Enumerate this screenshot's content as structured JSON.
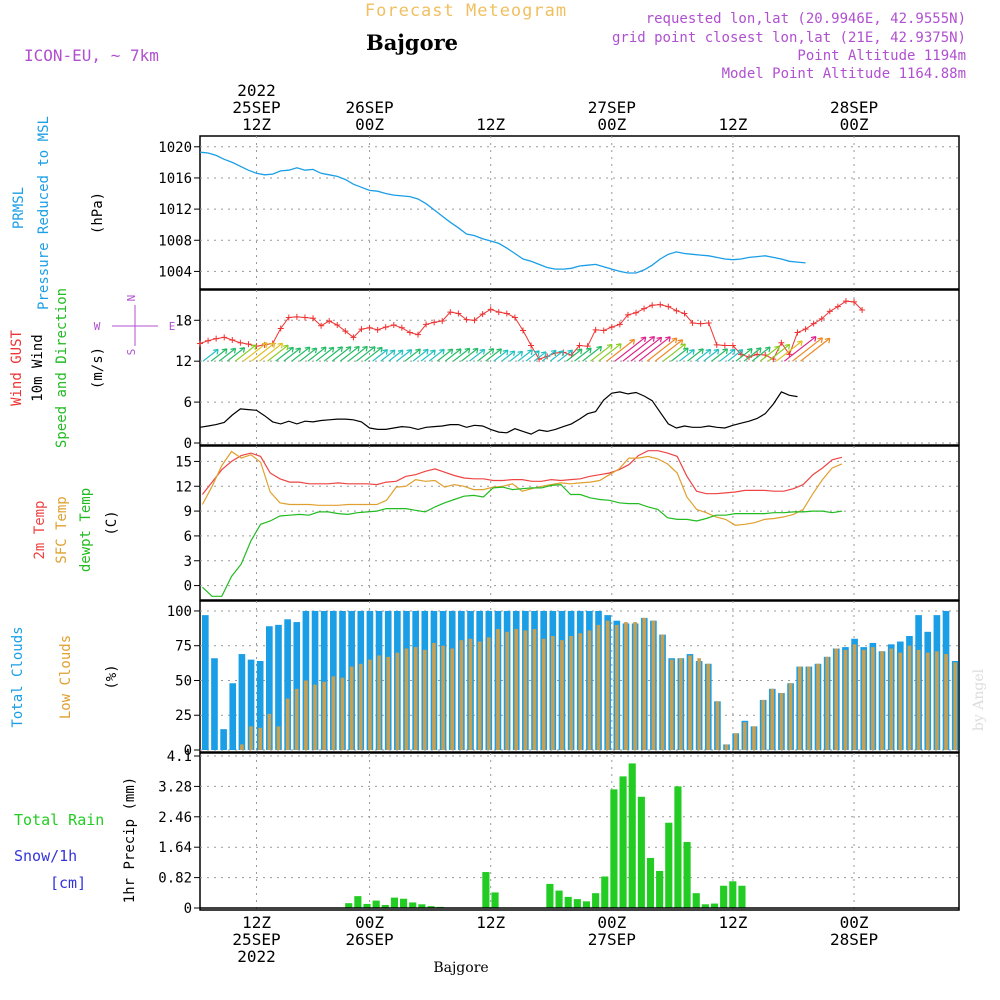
{
  "header": {
    "title": "Forecast Meteogram",
    "location": "Bajgore",
    "model": "ICON-EU, ~ 7km",
    "requested": "requested lon,lat (20.9946E, 42.9555N)",
    "grid_point": "grid point closest lon,lat (21E, 42.9375N)",
    "point_altitude": "Point Altitude 1194m",
    "model_altitude": "Model Point Altitude 1164.88m",
    "footer_location": "Bajgore",
    "watermark": "by Angel",
    "compass": {
      "n": "N",
      "s": "S",
      "e": "E",
      "w": "W"
    }
  },
  "colors": {
    "pressure": "#1a9ee6",
    "gust": "#ee3333",
    "wind_speed": "#000000",
    "direction_label": "#22bb22",
    "temp": "#ee4444",
    "sfc_temp": "#e0a030",
    "dewpt": "#22bb22",
    "total_clouds": "#1a9ee6",
    "low_clouds": "#c8a050",
    "rain": "#22cc22",
    "snow": "#3333dd",
    "header_purple": "#b050d0",
    "title_orange": "#f0c060"
  },
  "chart_data": [
    {
      "type": "line",
      "name": "pressure",
      "xlim": [
        0,
        94
      ],
      "ylim": [
        1002,
        1021
      ],
      "yticks": [
        1004,
        1008,
        1012,
        1016,
        1020
      ],
      "ylabel_lines": [
        "PRMSL",
        "Pressure Reduced to MSL"
      ],
      "unit": "(hPa)",
      "top_time_labels": [
        {
          "x": 7,
          "lines": [
            "2022",
            "25SEP",
            "12Z"
          ]
        },
        {
          "x": 21,
          "lines": [
            "26SEP",
            "00Z"
          ]
        },
        {
          "x": 36,
          "lines": [
            "12Z"
          ]
        },
        {
          "x": 51,
          "lines": [
            "27SEP",
            "00Z"
          ]
        },
        {
          "x": 66,
          "lines": [
            "12Z"
          ]
        },
        {
          "x": 81,
          "lines": [
            "28SEP",
            "00Z"
          ]
        }
      ],
      "series": [
        {
          "values": [
            1019.3,
            1019.2,
            1018.9,
            1018.4,
            1018.0,
            1017.5,
            1017.0,
            1016.6,
            1016.4,
            1016.5,
            1016.9,
            1017.0,
            1017.3,
            1017.0,
            1017.1,
            1016.6,
            1016.4,
            1016.2,
            1015.8,
            1015.2,
            1014.8,
            1014.4,
            1014.3,
            1014.0,
            1013.8,
            1013.7,
            1013.6,
            1013.3,
            1012.7,
            1011.9,
            1011.1,
            1010.3,
            1009.6,
            1008.8,
            1008.6,
            1008.2,
            1007.9,
            1007.6,
            1007.0,
            1006.3,
            1005.6,
            1005.3,
            1004.9,
            1004.5,
            1004.3,
            1004.3,
            1004.4,
            1004.7,
            1004.8,
            1004.9,
            1004.6,
            1004.3,
            1004.0,
            1003.8,
            1003.8,
            1004.2,
            1004.8,
            1005.6,
            1006.2,
            1006.5,
            1006.3,
            1006.2,
            1006.1,
            1006.0,
            1005.8,
            1005.6,
            1005.5,
            1005.6,
            1005.8,
            1005.9,
            1006.0,
            1005.8,
            1005.6,
            1005.3,
            1005.2,
            1005.1
          ]
        }
      ]
    },
    {
      "type": "line",
      "name": "wind",
      "xlim": [
        0,
        94
      ],
      "ylim": [
        0,
        22
      ],
      "yticks": [
        0,
        6,
        12,
        18
      ],
      "label_lines": [
        {
          "text": "Wind GUST",
          "color": "#ee3333"
        },
        {
          "text": "10m Wind",
          "color": "#000000"
        },
        {
          "text": "Speed and Direction",
          "color": "#22bb22"
        }
      ],
      "unit": "(m/s)",
      "series": [
        {
          "name": "Wind GUST",
          "values": [
            14.6,
            15.0,
            15.3,
            15.5,
            15.1,
            14.7,
            14.5,
            14.2,
            14.4,
            14.6,
            16.8,
            18.4,
            18.5,
            18.4,
            18.3,
            17.2,
            17.9,
            17.3,
            16.4,
            15.5,
            16.7,
            16.9,
            16.6,
            17.0,
            17.3,
            16.9,
            16.2,
            15.9,
            17.4,
            17.7,
            17.9,
            19.2,
            19.0,
            18.1,
            18.0,
            18.9,
            19.6,
            19.2,
            19.0,
            18.4,
            16.5,
            14.3,
            12.3,
            12.7,
            13.2,
            13.3,
            12.9,
            14.3,
            14.2,
            16.6,
            16.5,
            17.0,
            17.4,
            18.8,
            19.1,
            19.7,
            20.2,
            20.3,
            20.0,
            19.4,
            19.0,
            17.6,
            17.5,
            17.6,
            14.4,
            14.3,
            14.3,
            13.0,
            12.6,
            13.0,
            12.9,
            12.3,
            14.7,
            13.0,
            16.2,
            16.7,
            17.5,
            18.2,
            19.3,
            20.0,
            20.8,
            20.7,
            19.5
          ]
        },
        {
          "name": "10m Wind",
          "values": [
            2.3,
            2.5,
            2.7,
            3.0,
            4.1,
            5.0,
            4.9,
            4.8,
            4.0,
            3.1,
            2.8,
            3.2,
            2.8,
            3.2,
            3.1,
            3.3,
            3.4,
            3.5,
            3.5,
            3.4,
            3.1,
            2.2,
            2.0,
            2.0,
            2.2,
            2.4,
            2.3,
            2.0,
            2.3,
            2.4,
            2.5,
            2.7,
            2.7,
            2.3,
            2.6,
            2.5,
            2.0,
            1.6,
            1.5,
            2.1,
            1.7,
            1.3,
            1.9,
            1.7,
            2.0,
            2.4,
            2.8,
            3.5,
            4.3,
            4.6,
            6.3,
            7.3,
            7.5,
            7.2,
            7.4,
            6.9,
            6.2,
            4.5,
            2.8,
            2.2,
            2.5,
            2.3,
            2.3,
            2.5,
            2.3,
            2.2,
            2.6,
            2.9,
            3.2,
            3.6,
            4.3,
            5.7,
            7.5,
            7.0,
            6.8
          ]
        }
      ],
      "arrow_direction_deg": 230
    },
    {
      "type": "line",
      "name": "temperature",
      "xlim": [
        0,
        94
      ],
      "ylim": [
        -1.5,
        16.5
      ],
      "yticks": [
        0,
        3,
        6,
        9,
        12,
        15
      ],
      "label_lines": [
        {
          "text": "2m Temp",
          "color": "#ee4444"
        },
        {
          "text": "SFC Temp",
          "color": "#e0a030"
        },
        {
          "text": "dewpt Temp",
          "color": "#22bb22"
        }
      ],
      "unit": "(C)",
      "series": [
        {
          "name": "2m Temp",
          "values": [
            11.0,
            12.5,
            14.0,
            15.0,
            15.7,
            16.0,
            15.6,
            13.6,
            12.9,
            12.5,
            12.5,
            12.3,
            12.3,
            12.3,
            12.4,
            12.3,
            12.3,
            12.3,
            12.2,
            12.5,
            12.6,
            13.2,
            13.4,
            13.8,
            14.1,
            13.7,
            13.3,
            13.0,
            12.9,
            12.9,
            12.7,
            12.7,
            12.8,
            12.8,
            12.6,
            12.6,
            12.8,
            12.7,
            12.8,
            12.9,
            13.2,
            13.4,
            13.6,
            14.0,
            14.6,
            15.7,
            16.3,
            16.3,
            16.0,
            15.6,
            13.2,
            11.4,
            11.1,
            11.1,
            11.2,
            11.3,
            11.5,
            11.5,
            11.5,
            11.4,
            11.4,
            11.7,
            12.2,
            13.4,
            14.2,
            15.2,
            15.5
          ]
        },
        {
          "name": "SFC Temp",
          "values": [
            9.8,
            12.0,
            14.5,
            16.2,
            15.4,
            15.8,
            14.9,
            11.3,
            10.0,
            9.8,
            9.8,
            9.8,
            9.7,
            9.7,
            9.7,
            9.8,
            9.8,
            9.8,
            9.8,
            10.3,
            11.9,
            12.0,
            12.8,
            12.6,
            12.7,
            11.9,
            12.2,
            12.0,
            11.6,
            11.6,
            11.9,
            12.0,
            12.3,
            11.4,
            11.7,
            12.0,
            12.2,
            12.4,
            12.3,
            12.4,
            12.5,
            12.7,
            13.4,
            14.1,
            15.4,
            15.4,
            15.6,
            15.3,
            14.7,
            13.6,
            10.7,
            9.2,
            8.8,
            8.3,
            8.0,
            7.3,
            7.4,
            7.6,
            8.0,
            8.1,
            8.3,
            8.6,
            9.2,
            11.1,
            12.8,
            14.2,
            14.7
          ]
        },
        {
          "name": "dewpt Temp",
          "values": [
            -0.2,
            -1.3,
            -1.3,
            1.1,
            2.6,
            5.4,
            7.4,
            7.8,
            8.4,
            8.5,
            8.6,
            8.5,
            8.9,
            8.9,
            8.7,
            8.6,
            8.8,
            8.9,
            9.0,
            9.3,
            9.3,
            9.3,
            9.1,
            8.9,
            9.5,
            10.0,
            10.4,
            10.8,
            10.9,
            10.7,
            11.8,
            11.9,
            11.6,
            11.7,
            11.8,
            11.8,
            12.1,
            12.2,
            11.0,
            11.0,
            10.6,
            10.4,
            10.3,
            10.0,
            9.9,
            9.9,
            9.5,
            9.2,
            8.2,
            8.0,
            8.0,
            7.8,
            8.1,
            8.5,
            8.5,
            8.7,
            8.7,
            8.7,
            8.7,
            8.8,
            8.8,
            8.9,
            8.9,
            9.0,
            9.0,
            8.8,
            9.0
          ]
        }
      ]
    },
    {
      "type": "bar",
      "name": "clouds",
      "xlim": [
        0,
        94
      ],
      "ylim": [
        0,
        105
      ],
      "yticks": [
        0,
        25,
        50,
        75,
        100
      ],
      "label_lines": [
        {
          "text": "Total Clouds",
          "color": "#1a9ee6"
        },
        {
          "text": "Low Clouds",
          "color": "#e0a030"
        }
      ],
      "unit": "(%)",
      "series": [
        {
          "name": "Total Clouds",
          "values": [
            97,
            66,
            15,
            48,
            69,
            65,
            64,
            89,
            90,
            94,
            92,
            100,
            100,
            100,
            100,
            100,
            100,
            100,
            100,
            100,
            100,
            100,
            100,
            100,
            100,
            100,
            100,
            100,
            100,
            100,
            100,
            100,
            100,
            100,
            100,
            100,
            100,
            100,
            100,
            100,
            100,
            100,
            100,
            100,
            97,
            93,
            91,
            91,
            95,
            93,
            83,
            66,
            66,
            69,
            64,
            62,
            35,
            4,
            12,
            21,
            17,
            36,
            44,
            41,
            48,
            60,
            60,
            62,
            67,
            73,
            74,
            80,
            74,
            77,
            71,
            76,
            78,
            82,
            97,
            85,
            97,
            100,
            64
          ]
        },
        {
          "name": "Low Clouds",
          "values": [
            0,
            0,
            0,
            0,
            4,
            17,
            16,
            26,
            17,
            37,
            44,
            50,
            47,
            49,
            53,
            52,
            60,
            62,
            65,
            68,
            67,
            70,
            73,
            74,
            72,
            77,
            75,
            73,
            79,
            80,
            78,
            81,
            87,
            85,
            87,
            86,
            87,
            80,
            82,
            79,
            82,
            84,
            86,
            90,
            93,
            90,
            92,
            92,
            95,
            93,
            83,
            65,
            66,
            68,
            66,
            62,
            35,
            4,
            12,
            20,
            17,
            36,
            44,
            41,
            48,
            60,
            60,
            62,
            67,
            73,
            72,
            76,
            72,
            74,
            71,
            73,
            70,
            75,
            72,
            70,
            71,
            69,
            63
          ]
        }
      ]
    },
    {
      "type": "bar",
      "name": "precipitation",
      "xlim": [
        0,
        94
      ],
      "ylim": [
        0,
        4.1
      ],
      "yticks": [
        0,
        0.82,
        1.64,
        2.46,
        3.28,
        4.1
      ],
      "ytick_labels": [
        "0",
        "0.82",
        "1.64",
        "2.46",
        "3.28",
        "4.1"
      ],
      "ylabel": "1hr Precip (mm)",
      "legend": [
        "Total Rain",
        "Snow/1h",
        "[cm]"
      ],
      "bottom_time_labels": [
        {
          "x": 7,
          "lines": [
            "12Z",
            "25SEP",
            "2022"
          ]
        },
        {
          "x": 21,
          "lines": [
            "00Z",
            "26SEP"
          ]
        },
        {
          "x": 36,
          "lines": [
            "12Z"
          ]
        },
        {
          "x": 51,
          "lines": [
            "00Z",
            "27SEP"
          ]
        },
        {
          "x": 66,
          "lines": [
            "12Z"
          ]
        },
        {
          "x": 81,
          "lines": [
            "00Z",
            "28SEP"
          ]
        }
      ],
      "series": [
        {
          "name": "Total Rain",
          "values": [
            0,
            0,
            0,
            0,
            0,
            0,
            0,
            0,
            0.13,
            0.32,
            0.11,
            0.2,
            0.08,
            0.28,
            0.25,
            0.15,
            0.1,
            0.05,
            0.03,
            0.01,
            0,
            0.01,
            0,
            0.97,
            0.42,
            0,
            0,
            0,
            0,
            0,
            0.65,
            0.47,
            0.3,
            0.24,
            0.18,
            0.4,
            0.85,
            3.2,
            3.55,
            3.9,
            3.0,
            1.35,
            1.0,
            2.3,
            3.28,
            1.78,
            0.4,
            0.1,
            0.12,
            0.6,
            0.72,
            0.6
          ]
        }
      ]
    }
  ]
}
